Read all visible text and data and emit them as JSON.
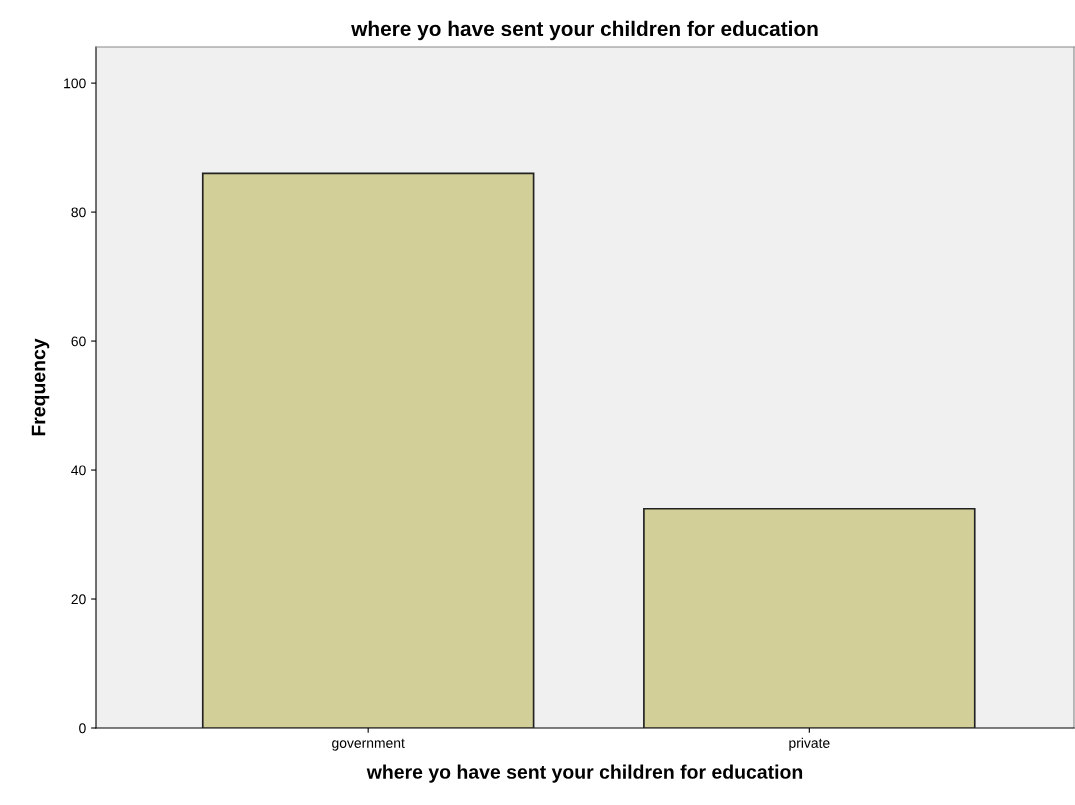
{
  "chart_data": {
    "type": "bar",
    "title": "where yo have sent your children for education",
    "xlabel": "where yo have sent your children for education",
    "ylabel": "Frequency",
    "categories": [
      "government",
      "private"
    ],
    "values": [
      86,
      34
    ],
    "color": "#d3cf98",
    "ylim": [
      0,
      105.6
    ],
    "yticks": [
      0,
      20,
      40,
      60,
      80,
      100
    ],
    "grid": false
  }
}
